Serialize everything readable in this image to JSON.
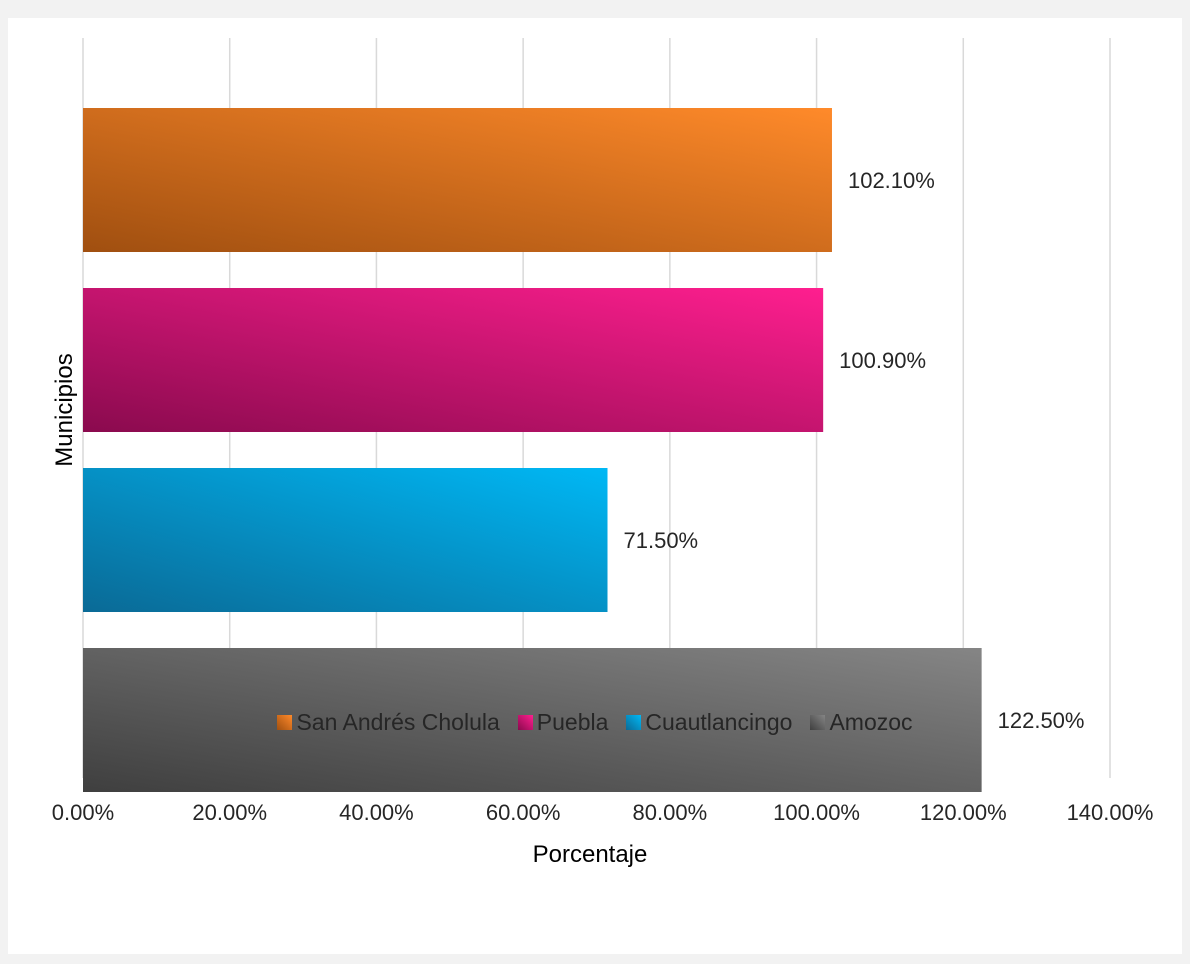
{
  "chart_data": {
    "type": "bar",
    "orientation": "horizontal",
    "categories": [
      "San Andrés Cholula",
      "Puebla",
      "Cuautlancingo",
      "Amozoc"
    ],
    "values": [
      102.1,
      100.9,
      71.5,
      122.5
    ],
    "data_labels": [
      "102.10%",
      "100.90%",
      "71.50%",
      "122.50%"
    ],
    "xlabel": "Porcentaje",
    "ylabel": "Municipios",
    "xlim": [
      0,
      140
    ],
    "x_ticks": [
      0,
      20,
      40,
      60,
      80,
      100,
      120,
      140
    ],
    "x_tick_labels": [
      "0.00%",
      "20.00%",
      "40.00%",
      "60.00%",
      "80.00%",
      "100.00%",
      "120.00%",
      "140.00%"
    ],
    "grid": true,
    "legend_position": "bottom",
    "legend": [
      "San Andrés Cholula",
      "Puebla",
      "Cuautlancingo",
      "Amozoc"
    ],
    "colors": {
      "San Andrés Cholula": [
        "#a04f10",
        "#ff8a2a"
      ],
      "Puebla": [
        "#8a0a4e",
        "#ff1f8f"
      ],
      "Cuautlancingo": [
        "#0a6a96",
        "#00b8f5"
      ],
      "Amozoc": [
        "#3f3f3f",
        "#858585"
      ]
    },
    "gridline_color": "#d9d9d9"
  }
}
